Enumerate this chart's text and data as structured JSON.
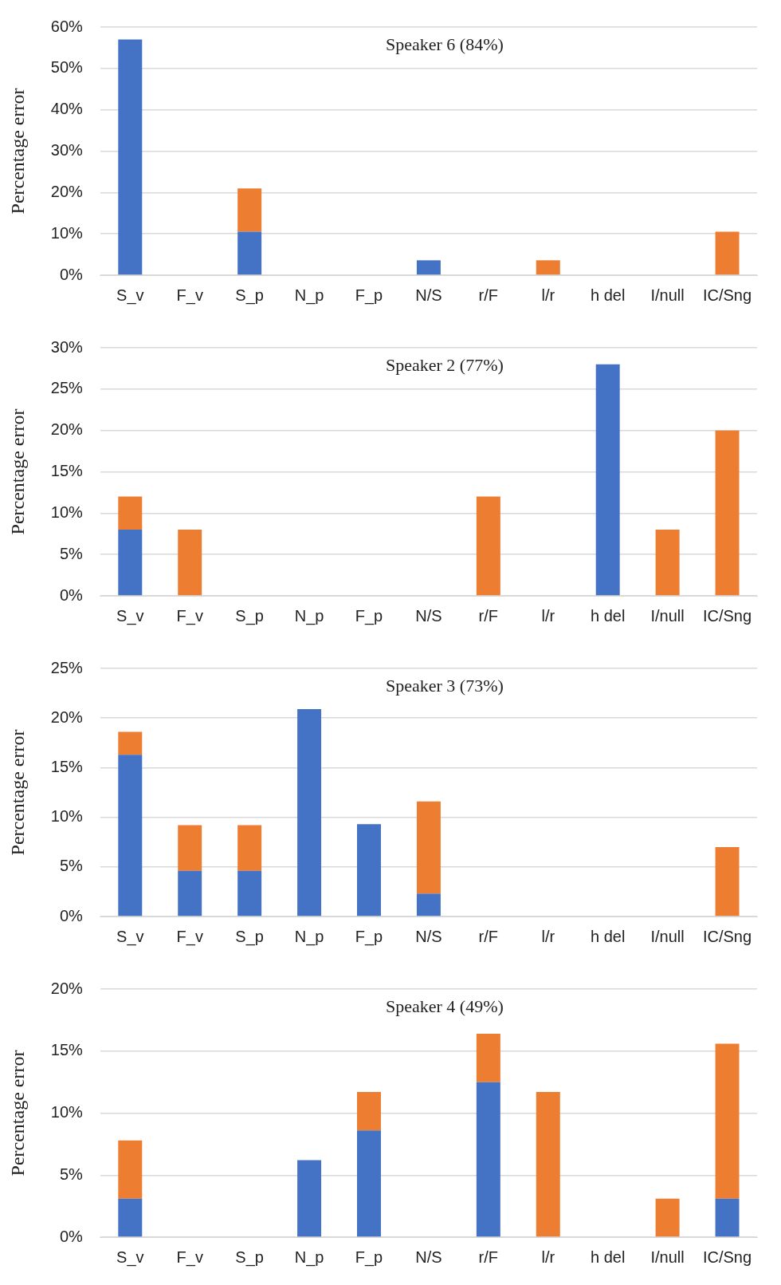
{
  "chart_data": [
    {
      "type": "bar",
      "title": "Speaker 6 (84%)",
      "ylabel": "Percentage error",
      "categories": [
        "S_v",
        "F_v",
        "S_p",
        "N_p",
        "F_p",
        "N/S",
        "r/F",
        "l/r",
        "h del",
        "I/null",
        "IC/Sng"
      ],
      "stacked": true,
      "grid": "y",
      "ylim": [
        0,
        60
      ],
      "yticks": [
        {
          "value": 0,
          "label": "0%"
        },
        {
          "value": 10,
          "label": "10%"
        },
        {
          "value": 20,
          "label": "20%"
        },
        {
          "value": 30,
          "label": "30%"
        },
        {
          "value": 40,
          "label": "40%"
        },
        {
          "value": 50,
          "label": "50%"
        },
        {
          "value": 60,
          "label": "60%"
        }
      ],
      "series": [
        {
          "color": "#4472c4",
          "values": [
            57,
            null,
            10.5,
            null,
            null,
            3.6,
            null,
            null,
            null,
            null,
            null
          ]
        },
        {
          "color": "#ed7d31",
          "values": [
            null,
            null,
            10.5,
            null,
            null,
            null,
            null,
            3.6,
            null,
            null,
            10.5
          ]
        }
      ]
    },
    {
      "type": "bar",
      "title": "Speaker 2 (77%)",
      "ylabel": "Percentage error",
      "categories": [
        "S_v",
        "F_v",
        "S_p",
        "N_p",
        "F_p",
        "N/S",
        "r/F",
        "l/r",
        "h del",
        "I/null",
        "IC/Sng"
      ],
      "stacked": true,
      "grid": "y",
      "ylim": [
        0,
        30
      ],
      "yticks": [
        {
          "value": 0,
          "label": "0%"
        },
        {
          "value": 5,
          "label": "5%"
        },
        {
          "value": 10,
          "label": "10%"
        },
        {
          "value": 15,
          "label": "15%"
        },
        {
          "value": 20,
          "label": "20%"
        },
        {
          "value": 25,
          "label": "25%"
        },
        {
          "value": 30,
          "label": "30%"
        }
      ],
      "series": [
        {
          "color": "#4472c4",
          "values": [
            8,
            null,
            null,
            null,
            null,
            null,
            null,
            null,
            28,
            null,
            null
          ]
        },
        {
          "color": "#ed7d31",
          "values": [
            4,
            8,
            null,
            null,
            null,
            null,
            12,
            null,
            null,
            8,
            20
          ]
        }
      ]
    },
    {
      "type": "bar",
      "title": "Speaker 3 (73%)",
      "ylabel": "Percentage error",
      "categories": [
        "S_v",
        "F_v",
        "S_p",
        "N_p",
        "F_p",
        "N/S",
        "r/F",
        "l/r",
        "h del",
        "I/null",
        "IC/Sng"
      ],
      "stacked": true,
      "grid": "y",
      "ylim": [
        0,
        25
      ],
      "yticks": [
        {
          "value": 0,
          "label": "0%"
        },
        {
          "value": 5,
          "label": "5%"
        },
        {
          "value": 10,
          "label": "10%"
        },
        {
          "value": 15,
          "label": "15%"
        },
        {
          "value": 20,
          "label": "20%"
        },
        {
          "value": 25,
          "label": "25%"
        }
      ],
      "series": [
        {
          "color": "#4472c4",
          "values": [
            16.3,
            4.6,
            4.6,
            20.9,
            9.3,
            2.3,
            null,
            null,
            null,
            null,
            null
          ]
        },
        {
          "color": "#ed7d31",
          "values": [
            2.3,
            4.6,
            4.6,
            null,
            null,
            9.3,
            null,
            null,
            null,
            null,
            7
          ]
        }
      ]
    },
    {
      "type": "bar",
      "title": "Speaker 4 (49%)",
      "ylabel": "Percentage error",
      "categories": [
        "S_v",
        "F_v",
        "S_p",
        "N_p",
        "F_p",
        "N/S",
        "r/F",
        "l/r",
        "h del",
        "I/null",
        "IC/Sng"
      ],
      "stacked": true,
      "grid": "y",
      "ylim": [
        0,
        20
      ],
      "yticks": [
        {
          "value": 0,
          "label": "0%"
        },
        {
          "value": 5,
          "label": "5%"
        },
        {
          "value": 10,
          "label": "10%"
        },
        {
          "value": 15,
          "label": "15%"
        },
        {
          "value": 20,
          "label": "20%"
        }
      ],
      "series": [
        {
          "color": "#4472c4",
          "values": [
            3.1,
            null,
            null,
            6.2,
            8.6,
            null,
            12.5,
            null,
            null,
            null,
            3.1
          ]
        },
        {
          "color": "#ed7d31",
          "values": [
            4.7,
            null,
            null,
            null,
            3.1,
            null,
            3.9,
            11.7,
            null,
            3.1,
            12.5
          ]
        }
      ]
    }
  ]
}
